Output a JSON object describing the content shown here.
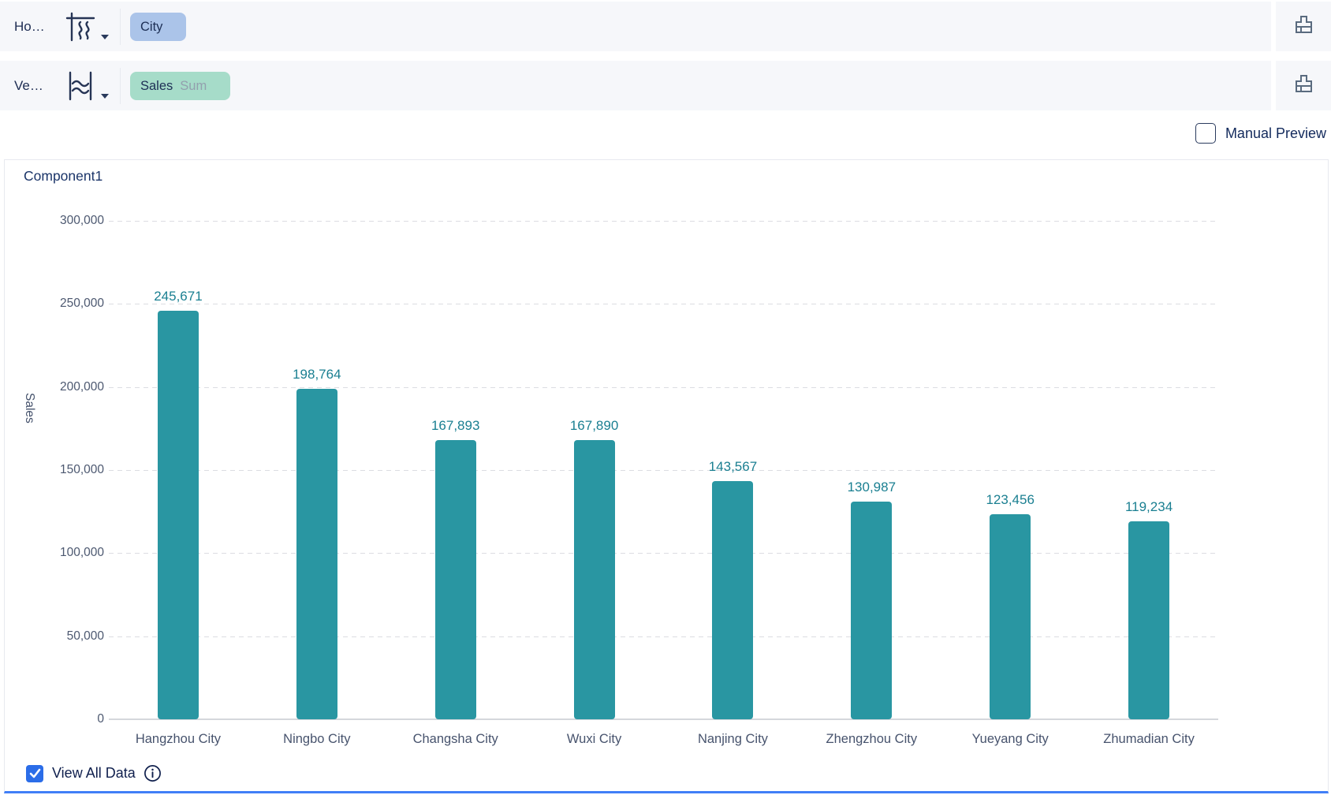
{
  "shelves": {
    "horizontal": {
      "label": "Ho…",
      "axis_icon": "horizontal-axis-icon",
      "field": {
        "name": "City",
        "pill_color": "#abc4e9"
      }
    },
    "vertical": {
      "label": "Ve…",
      "axis_icon": "vertical-axis-icon",
      "field": {
        "name": "Sales",
        "aggregation": "Sum",
        "pill_color": "#a6dcc9"
      }
    },
    "format_icon": "brush-icon"
  },
  "preview": {
    "manual_preview_label": "Manual Preview",
    "checked": false
  },
  "footer": {
    "view_all_data_label": "View All Data",
    "checked": true,
    "checkbox_color": "#2b6de8",
    "info_icon": "info-icon"
  },
  "colors": {
    "accent_blue": "#417ff7",
    "bar_teal": "#2996a2",
    "value_label_teal": "#1a7f91"
  },
  "chart_data": {
    "type": "bar",
    "title": "Component1",
    "ylabel": "Sales",
    "categories": [
      "Hangzhou City",
      "Ningbo City",
      "Changsha City",
      "Wuxi City",
      "Nanjing City",
      "Zhengzhou City",
      "Yueyang City",
      "Zhumadian City"
    ],
    "values": [
      245671,
      198764,
      167893,
      167890,
      143567,
      130987,
      123456,
      119234
    ],
    "ylim": [
      0,
      300000
    ],
    "ytick_step": 50000,
    "grid": true,
    "grid_style": "dashed",
    "legend": "none",
    "bar_color": "#2996a2",
    "label_color": "#1a7f91"
  }
}
